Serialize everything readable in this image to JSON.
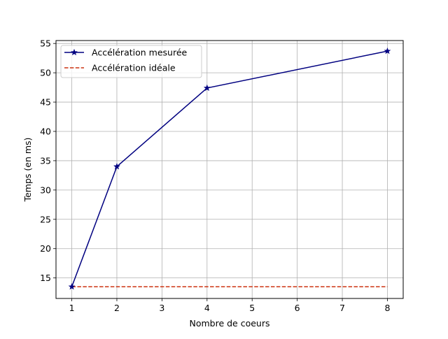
{
  "chart_data": {
    "type": "line",
    "title": "",
    "xlabel": "Nombre de coeurs",
    "ylabel": "Temps (en ms)",
    "xlim": [
      0.65,
      8.35
    ],
    "ylim": [
      11.5,
      55.5
    ],
    "xticks": [
      1,
      2,
      3,
      4,
      5,
      6,
      7,
      8
    ],
    "yticks": [
      15,
      20,
      25,
      30,
      35,
      40,
      45,
      50,
      55
    ],
    "grid": true,
    "legend_position": "upper-left",
    "series": [
      {
        "name": "Accélération mesurée",
        "x": [
          1,
          2,
          4,
          8
        ],
        "y": [
          13.5,
          34.0,
          47.4,
          53.7
        ],
        "color": "#000080",
        "line_style": "solid",
        "marker": "star"
      },
      {
        "name": "Accélération idéale",
        "x": [
          1,
          2,
          4,
          8
        ],
        "y": [
          13.5,
          13.5,
          13.5,
          13.5
        ],
        "color": "#cc3311",
        "line_style": "dashed",
        "marker": "none"
      }
    ]
  }
}
